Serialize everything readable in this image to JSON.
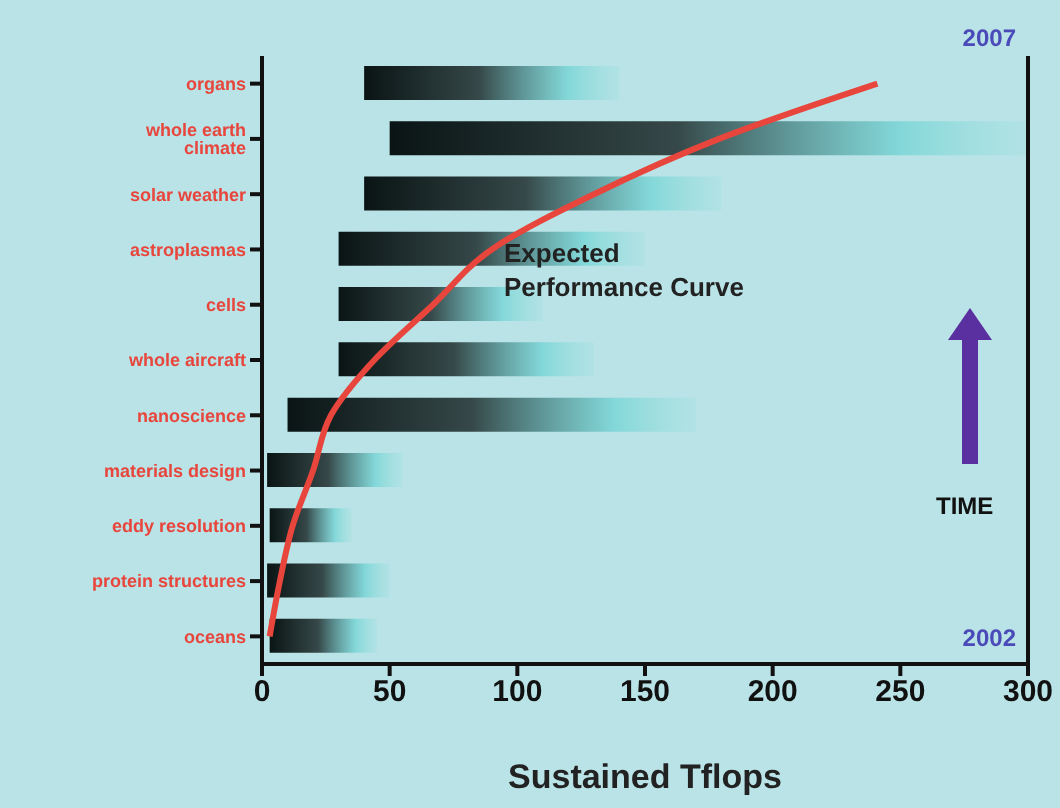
{
  "chart_data": {
    "type": "bar",
    "orientation": "horizontal",
    "xlabel": "Sustained Tflops",
    "y2label": "TIME",
    "categories": [
      "organs",
      "whole earth climate",
      "solar weather",
      "astroplasmas",
      "cells",
      "whole aircraft",
      "nanoscience",
      "materials design",
      "eddy resolution",
      "protein structures",
      "oceans"
    ],
    "series": [
      {
        "color": "#0a1414",
        "base": [
          40,
          50,
          40,
          30,
          30,
          30,
          10,
          2,
          3,
          2,
          3
        ],
        "values": [
          100,
          250,
          140,
          120,
          80,
          100,
          160,
          53,
          32,
          48,
          42
        ]
      },
      {
        "type": "line",
        "name": "Expected Performance Curve",
        "color": "#e8453c",
        "values": [
          241,
          179,
          130,
          90,
          67,
          44,
          27,
          20,
          12,
          7,
          3
        ]
      }
    ],
    "xlim": [
      0,
      300
    ],
    "xticks": [
      0,
      50,
      100,
      150,
      200,
      250,
      300
    ],
    "annotations": [
      "2007",
      "2002"
    ],
    "marker": "none",
    "grid": false,
    "legend": false
  }
}
